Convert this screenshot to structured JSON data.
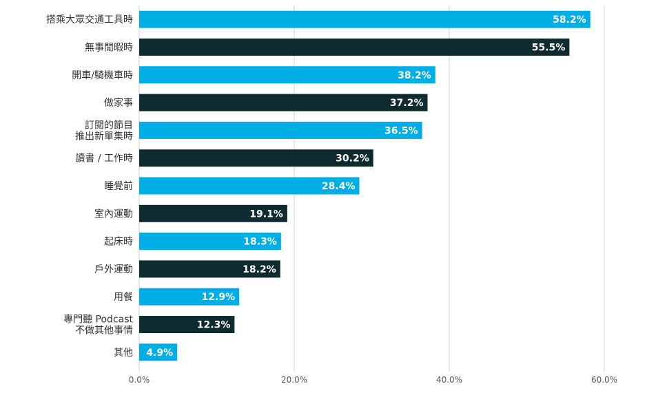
{
  "chart_data": {
    "type": "bar",
    "orientation": "horizontal",
    "categories": [
      [
        "搭乘大眾交通工具時"
      ],
      [
        "無事閒暇時"
      ],
      [
        "開車/騎機車時"
      ],
      [
        "做家事"
      ],
      [
        "訂閱的節目",
        "推出新單集時"
      ],
      [
        "讀書 / 工作時"
      ],
      [
        "睡覺前"
      ],
      [
        "室內運動"
      ],
      [
        "起床時"
      ],
      [
        "戶外運動"
      ],
      [
        "用餐"
      ],
      [
        "專門聽 Podcast",
        "不做其他事情"
      ],
      [
        "其他"
      ]
    ],
    "values": [
      58.2,
      55.5,
      38.2,
      37.2,
      36.5,
      30.2,
      28.4,
      19.1,
      18.3,
      18.2,
      12.9,
      12.3,
      4.9
    ],
    "data_labels": [
      "58.2%",
      "55.5%",
      "38.2%",
      "37.2%",
      "36.5%",
      "30.2%",
      "28.4%",
      "19.1%",
      "18.3%",
      "18.2%",
      "12.9%",
      "12.3%",
      "4.9%"
    ],
    "bar_colors": [
      "#00aee6",
      "#0f2b30",
      "#00aee6",
      "#0f2b30",
      "#00aee6",
      "#0f2b30",
      "#00aee6",
      "#0f2b30",
      "#00aee6",
      "#0f2b30",
      "#00aee6",
      "#0f2b30",
      "#00aee6"
    ],
    "xlim": [
      0,
      60
    ],
    "x_ticks": [
      0,
      20,
      40,
      60
    ],
    "x_tick_labels": [
      "0.0%",
      "20.0%",
      "40.0%",
      "60.0%"
    ],
    "grid": true,
    "legend": "none",
    "title": "",
    "xlabel": "",
    "ylabel": ""
  }
}
